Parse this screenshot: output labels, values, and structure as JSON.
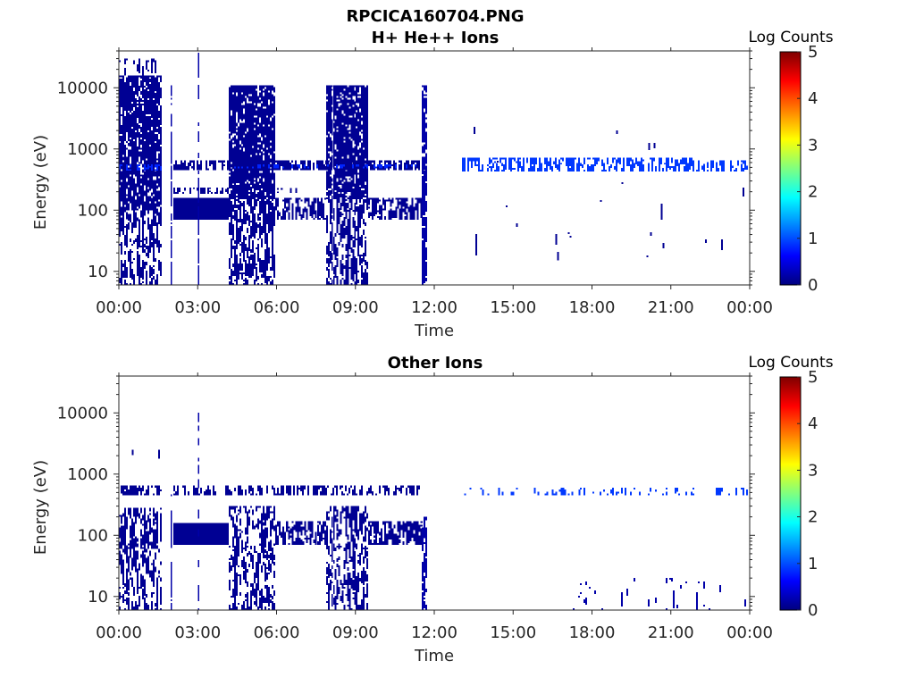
{
  "figure_title": "RPCICA160704.PNG",
  "colormap": {
    "name": "jet",
    "stops": [
      "#00007f",
      "#0000ff",
      "#00ffff",
      "#ffff00",
      "#ff0000",
      "#7f0000"
    ]
  },
  "chart_data": [
    {
      "type": "heatmap",
      "title": "H+ He++ Ions",
      "xlabel": "Time",
      "ylabel": "Energy (eV)",
      "xlim": [
        "00:00",
        "24:00"
      ],
      "x_tick_labels": [
        "00:00",
        "03:00",
        "06:00",
        "09:00",
        "12:00",
        "15:00",
        "18:00",
        "21:00",
        "00:00"
      ],
      "y_scale": "log",
      "ylim": [
        6,
        40000
      ],
      "y_ticks": [
        10,
        100,
        1000,
        10000
      ],
      "y_tick_labels": [
        "10",
        "100",
        "1000",
        "10000"
      ],
      "colorbar": {
        "label": "Log Counts",
        "range": [
          0,
          5
        ],
        "tick_labels": [
          "0",
          "1",
          "2",
          "3",
          "4",
          "5"
        ]
      },
      "regions": [
        {
          "time": [
            "00:00",
            "01:38"
          ],
          "energy_ev": [
            6,
            100
          ],
          "log_counts": 0.1,
          "occupancy": 0.55
        },
        {
          "time": [
            "00:00",
            "01:38"
          ],
          "energy_ev": [
            100,
            16000
          ],
          "log_counts": 0.1,
          "occupancy": 0.85
        },
        {
          "time": [
            "00:00",
            "01:38"
          ],
          "energy_ev": [
            16000,
            30000
          ],
          "log_counts": 0.1,
          "occupancy": 0.2
        },
        {
          "time": [
            "00:00",
            "01:38"
          ],
          "energy_ev": [
            440,
            560
          ],
          "log_counts": 0.8,
          "occupancy": 0.45
        },
        {
          "time": [
            "01:58",
            "02:01"
          ],
          "energy_ev": [
            6,
            11000
          ],
          "log_counts": 0.2,
          "occupancy": 0.8
        },
        {
          "time": [
            "02:04",
            "11:40"
          ],
          "energy_ev": [
            450,
            650
          ],
          "log_counts": 0.1,
          "occupancy": 0.7
        },
        {
          "time": [
            "02:04",
            "04:11"
          ],
          "energy_ev": [
            185,
            235
          ],
          "log_counts": 0.1,
          "occupancy": 0.45
        },
        {
          "time": [
            "02:04",
            "04:11"
          ],
          "energy_ev": [
            70,
            160
          ],
          "log_counts": 0.1,
          "occupancy": 1.0
        },
        {
          "time": [
            "03:01",
            "03:04"
          ],
          "energy_ev": [
            6,
            40000
          ],
          "log_counts": 0.2,
          "occupancy": 0.6
        },
        {
          "time": [
            "04:11",
            "05:57"
          ],
          "energy_ev": [
            6,
            150
          ],
          "log_counts": 0.1,
          "occupancy": 0.6
        },
        {
          "time": [
            "04:11",
            "05:57"
          ],
          "energy_ev": [
            150,
            11000
          ],
          "log_counts": 0.1,
          "occupancy": 0.88
        },
        {
          "time": [
            "05:57",
            "07:53"
          ],
          "energy_ev": [
            70,
            160
          ],
          "log_counts": 0.1,
          "occupancy": 0.6
        },
        {
          "time": [
            "05:57",
            "07:00"
          ],
          "energy_ev": [
            190,
            230
          ],
          "log_counts": 0.1,
          "occupancy": 0.35
        },
        {
          "time": [
            "07:53",
            "09:29"
          ],
          "energy_ev": [
            6,
            150
          ],
          "log_counts": 0.1,
          "occupancy": 0.6
        },
        {
          "time": [
            "07:53",
            "09:29"
          ],
          "energy_ev": [
            150,
            11000
          ],
          "log_counts": 0.1,
          "occupancy": 0.88
        },
        {
          "time": [
            "09:29",
            "11:33"
          ],
          "energy_ev": [
            70,
            160
          ],
          "log_counts": 0.1,
          "occupancy": 0.65
        },
        {
          "time": [
            "04:11",
            "11:40"
          ],
          "energy_ev": [
            480,
            560
          ],
          "log_counts": 0.8,
          "occupancy": 0.3
        },
        {
          "time": [
            "11:31",
            "11:44"
          ],
          "energy_ev": [
            6,
            11000
          ],
          "log_counts": 0.2,
          "occupancy": 0.85
        },
        {
          "time": [
            "13:03",
            "21:49"
          ],
          "energy_ev": [
            430,
            720
          ],
          "log_counts": 0.9,
          "occupancy": 0.5
        },
        {
          "time": [
            "21:49",
            "24:00"
          ],
          "energy_ev": [
            430,
            650
          ],
          "log_counts": 0.9,
          "occupancy": 0.45
        },
        {
          "time": [
            "12:00",
            "24:00"
          ],
          "energy_ev": [
            15,
            3000
          ],
          "log_counts": 0.1,
          "occupancy": 0.004
        }
      ]
    },
    {
      "type": "heatmap",
      "title": "Other Ions",
      "xlabel": "Time",
      "ylabel": "Energy (eV)",
      "xlim": [
        "00:00",
        "24:00"
      ],
      "x_tick_labels": [
        "00:00",
        "03:00",
        "06:00",
        "09:00",
        "12:00",
        "15:00",
        "18:00",
        "21:00",
        "00:00"
      ],
      "y_scale": "log",
      "ylim": [
        6,
        40000
      ],
      "y_ticks": [
        10,
        100,
        1000,
        10000
      ],
      "y_tick_labels": [
        "10",
        "100",
        "1000",
        "10000"
      ],
      "colorbar": {
        "label": "Log Counts",
        "range": [
          0,
          5
        ],
        "tick_labels": [
          "0",
          "1",
          "2",
          "3",
          "4",
          "5"
        ]
      },
      "regions": [
        {
          "time": [
            "00:00",
            "01:38"
          ],
          "energy_ev": [
            6,
            60
          ],
          "log_counts": 0.1,
          "occupancy": 0.45
        },
        {
          "time": [
            "00:00",
            "01:38"
          ],
          "energy_ev": [
            60,
            280
          ],
          "log_counts": 0.1,
          "occupancy": 0.6
        },
        {
          "time": [
            "00:00",
            "01:38"
          ],
          "energy_ev": [
            450,
            650
          ],
          "log_counts": 0.1,
          "occupancy": 0.45
        },
        {
          "time": [
            "00:30",
            "01:38"
          ],
          "energy_ev": [
            900,
            2500
          ],
          "log_counts": 0.1,
          "occupancy": 0.02
        },
        {
          "time": [
            "01:58",
            "02:01"
          ],
          "energy_ev": [
            6,
            650
          ],
          "log_counts": 0.2,
          "occupancy": 0.7
        },
        {
          "time": [
            "02:04",
            "11:40"
          ],
          "energy_ev": [
            450,
            650
          ],
          "log_counts": 0.1,
          "occupancy": 0.45
        },
        {
          "time": [
            "02:04",
            "04:11"
          ],
          "energy_ev": [
            70,
            160
          ],
          "log_counts": 0.1,
          "occupancy": 1.0
        },
        {
          "time": [
            "03:01",
            "03:04"
          ],
          "energy_ev": [
            6,
            15000
          ],
          "log_counts": 0.2,
          "occupancy": 0.35
        },
        {
          "time": [
            "04:11",
            "05:57"
          ],
          "energy_ev": [
            6,
            300
          ],
          "log_counts": 0.1,
          "occupancy": 0.5
        },
        {
          "time": [
            "05:57",
            "07:53"
          ],
          "energy_ev": [
            70,
            170
          ],
          "log_counts": 0.1,
          "occupancy": 0.6
        },
        {
          "time": [
            "07:53",
            "09:29"
          ],
          "energy_ev": [
            6,
            300
          ],
          "log_counts": 0.1,
          "occupancy": 0.5
        },
        {
          "time": [
            "09:29",
            "11:33"
          ],
          "energy_ev": [
            70,
            170
          ],
          "log_counts": 0.1,
          "occupancy": 0.7
        },
        {
          "time": [
            "11:31",
            "11:44"
          ],
          "energy_ev": [
            6,
            200
          ],
          "log_counts": 0.2,
          "occupancy": 0.7
        },
        {
          "time": [
            "13:00",
            "24:00"
          ],
          "energy_ev": [
            450,
            600
          ],
          "log_counts": 0.9,
          "occupancy": 0.18
        },
        {
          "time": [
            "17:00",
            "24:00"
          ],
          "energy_ev": [
            6,
            20
          ],
          "log_counts": 0.2,
          "occupancy": 0.04
        }
      ]
    }
  ]
}
